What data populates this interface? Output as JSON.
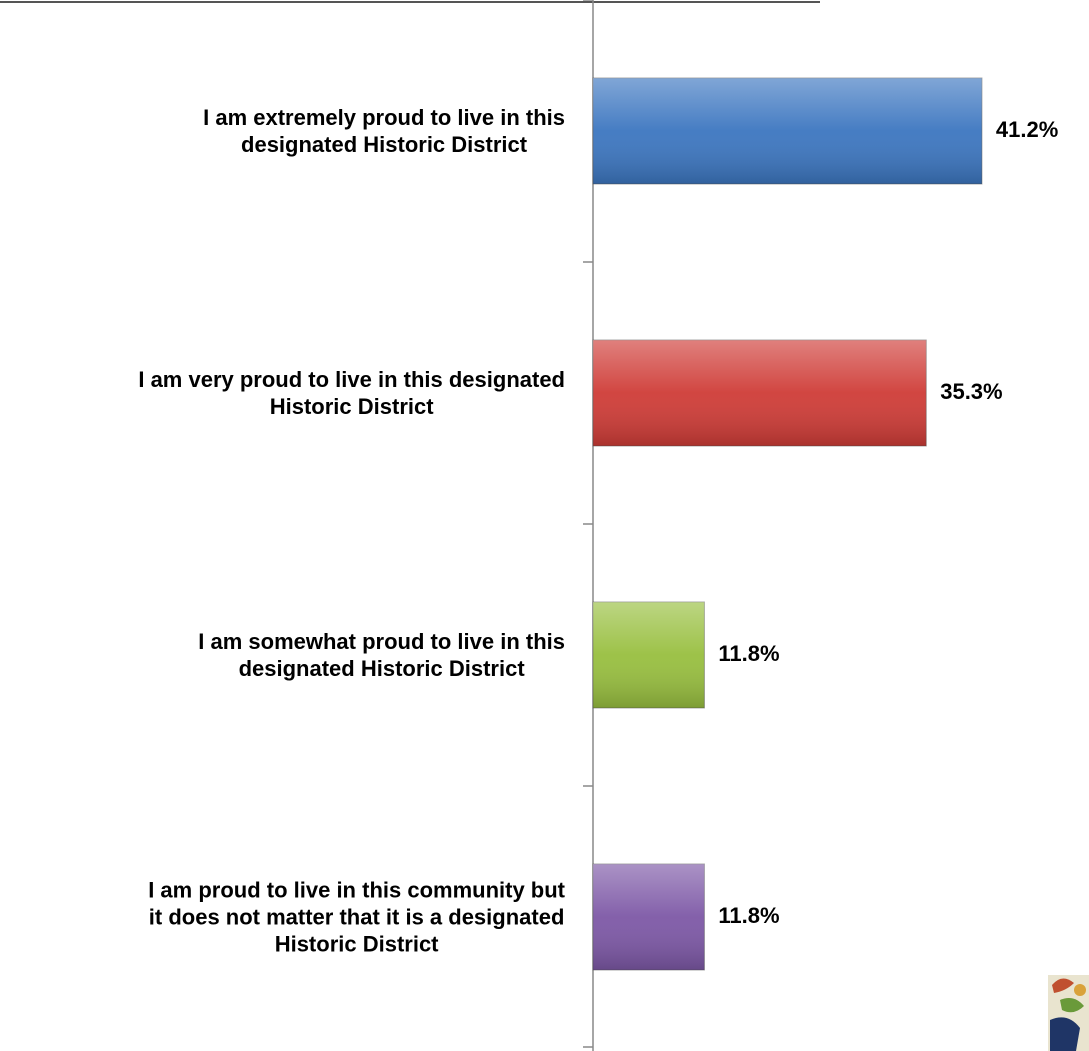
{
  "chart_data": {
    "type": "hbar",
    "categories": [
      [
        "I am extremely proud to live in this",
        "designated Historic District"
      ],
      [
        "I am very proud to live in this designated",
        "Historic District"
      ],
      [
        "I am somewhat proud to live in this",
        "designated Historic District"
      ],
      [
        "I am proud to live in this community but",
        "it does not matter that it is a designated",
        "Historic District"
      ]
    ],
    "values": [
      41.2,
      35.3,
      11.8,
      11.8
    ],
    "value_labels": [
      "41.2%",
      "35.3%",
      "11.8%",
      "11.8%"
    ],
    "colors": [
      "#3c76c0",
      "#cf3c37",
      "#98bf3f",
      "#7d58a6"
    ]
  }
}
